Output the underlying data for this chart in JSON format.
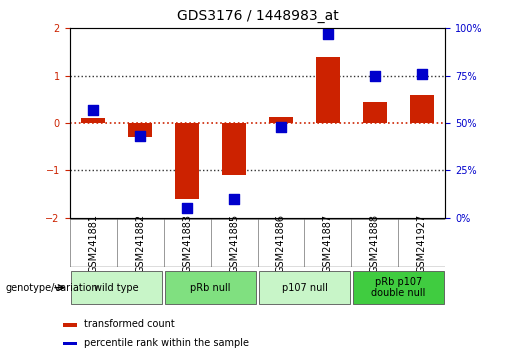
{
  "title": "GDS3176 / 1448983_at",
  "samples": [
    "GSM241881",
    "GSM241882",
    "GSM241883",
    "GSM241885",
    "GSM241886",
    "GSM241887",
    "GSM241888",
    "GSM241927"
  ],
  "red_values": [
    0.1,
    -0.3,
    -1.6,
    -1.1,
    0.12,
    1.4,
    0.45,
    0.6
  ],
  "blue_pct": [
    57,
    43,
    5,
    10,
    48,
    97,
    75,
    76
  ],
  "groups": [
    {
      "label": "wild type",
      "color": "#c8f5c8",
      "start": 0,
      "end": 2
    },
    {
      "label": "pRb null",
      "color": "#80e080",
      "start": 2,
      "end": 4
    },
    {
      "label": "p107 null",
      "color": "#c8f5c8",
      "start": 4,
      "end": 6
    },
    {
      "label": "pRb p107\ndouble null",
      "color": "#40cc40",
      "start": 6,
      "end": 8
    }
  ],
  "ylim": [
    -2,
    2
  ],
  "yticks_left": [
    -2,
    -1,
    0,
    1,
    2
  ],
  "yticks_right": [
    0,
    25,
    50,
    75,
    100
  ],
  "left_tick_color": "#cc2200",
  "right_tick_color": "#0000cc",
  "bar_color": "#cc2200",
  "dot_color": "#0000cc",
  "hline0_color": "#cc2200",
  "hline_pm1_color": "#333333",
  "bg_plot": "#ffffff",
  "bg_sample_labels": "#d0d0d0",
  "legend_red_label": "transformed count",
  "legend_blue_label": "percentile rank within the sample",
  "bar_width": 0.5,
  "dot_size": 55,
  "title_fontsize": 10,
  "tick_fontsize": 7,
  "label_fontsize": 7,
  "group_fontsize": 7,
  "legend_fontsize": 7
}
